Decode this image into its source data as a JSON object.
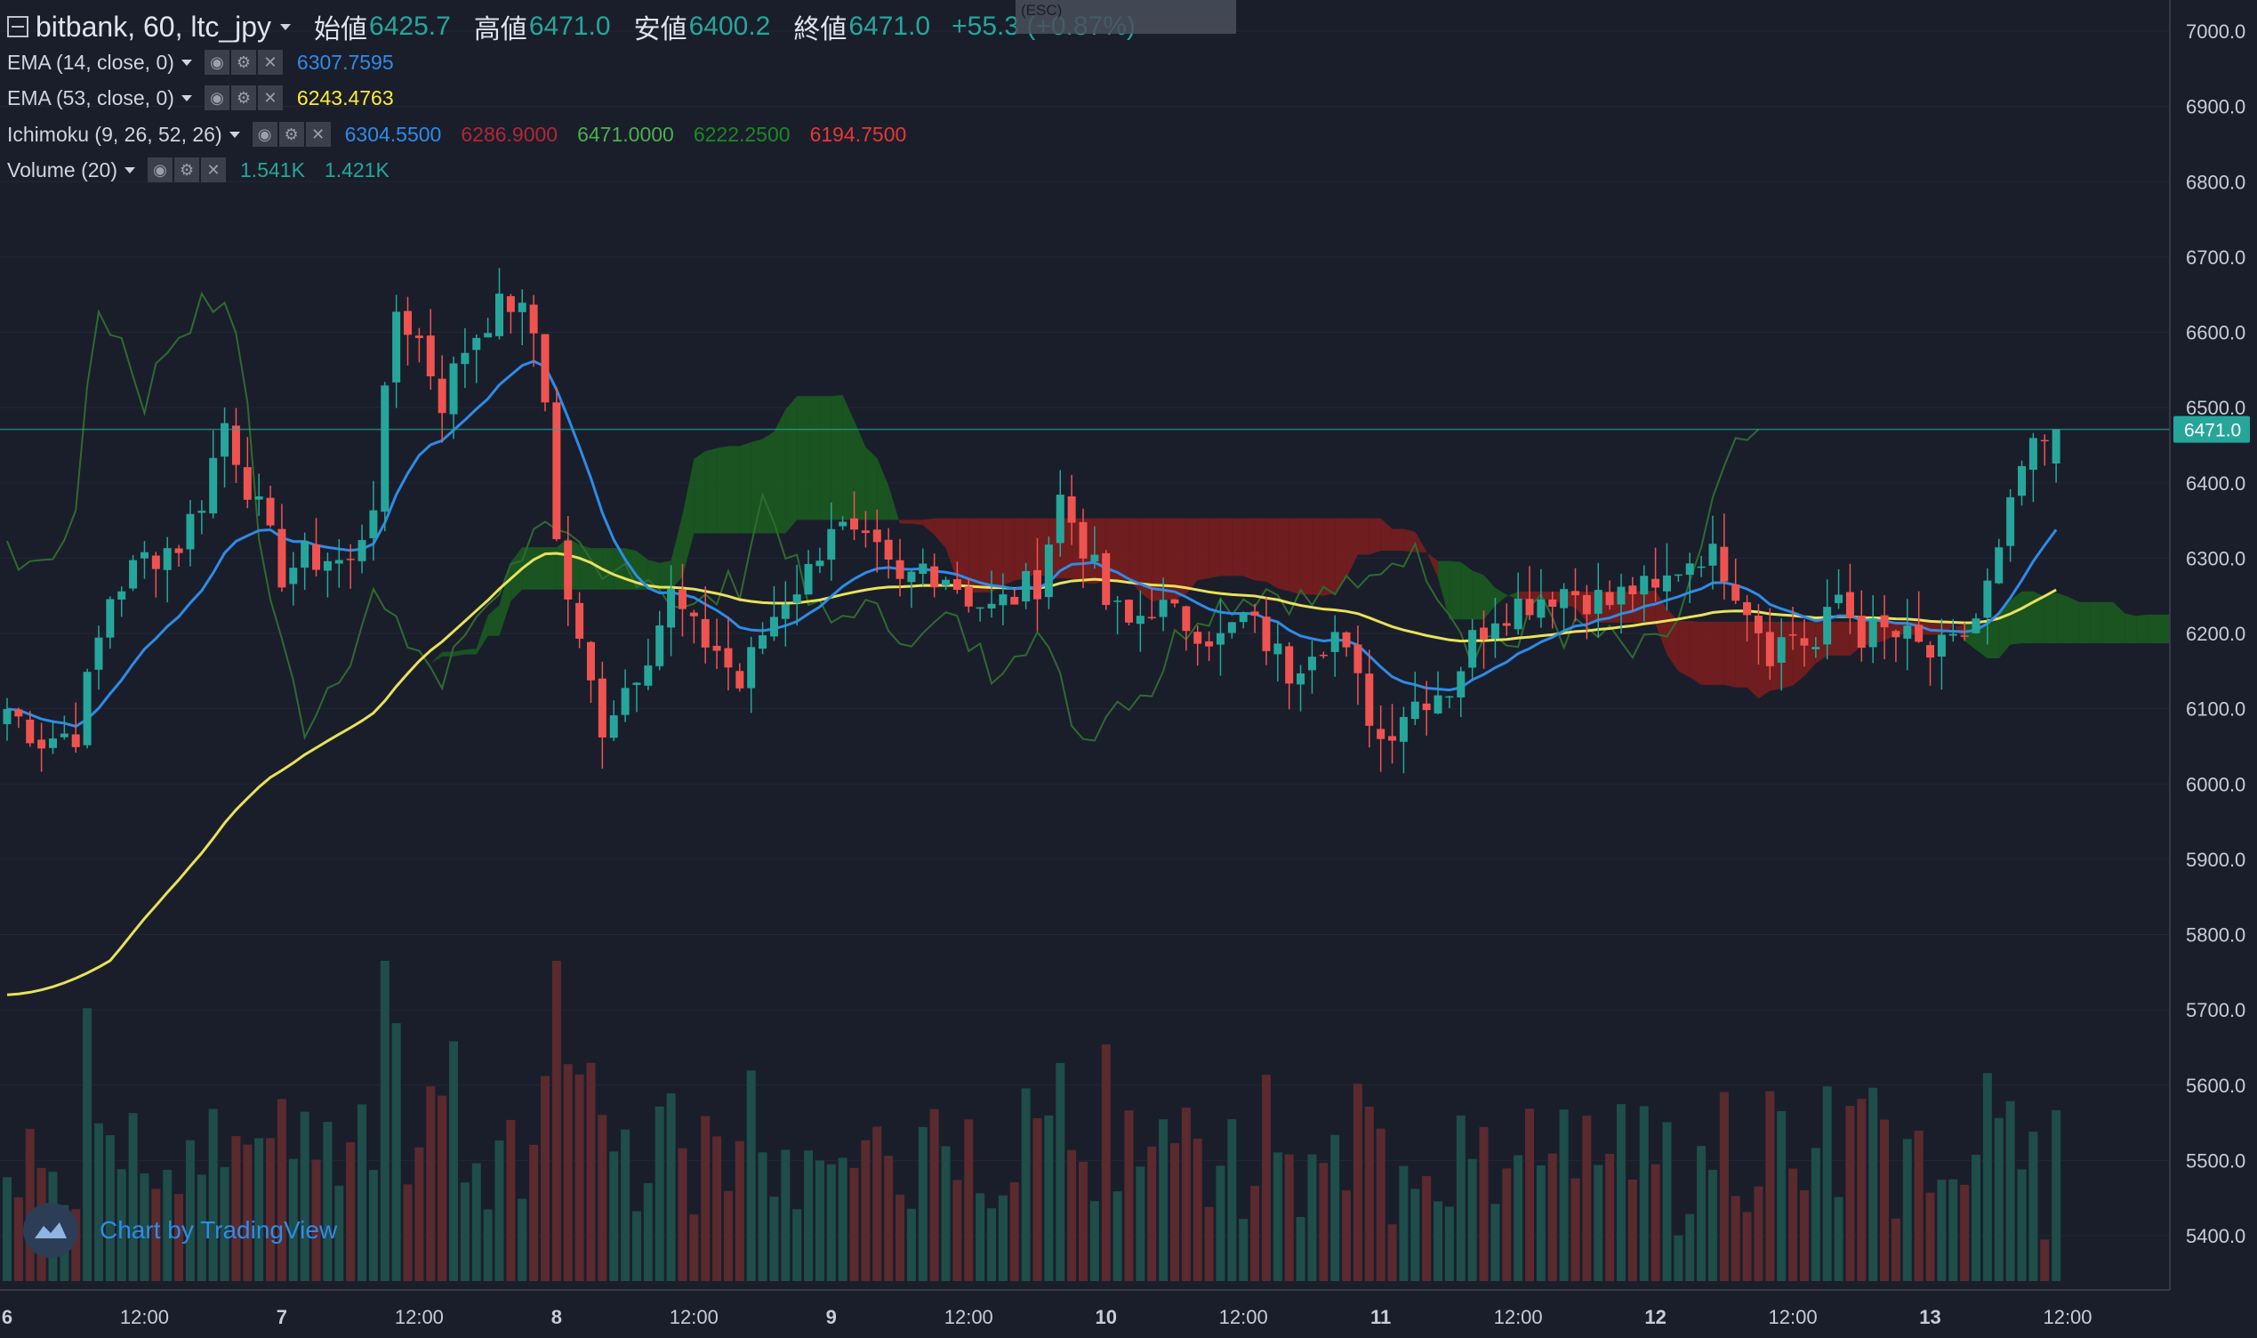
{
  "header": {
    "symbol": "bitbank, 60, ltc_jpy",
    "open_label": "始値",
    "open_value": "6425.7",
    "high_label": "高値",
    "high_value": "6471.0",
    "low_label": "安値",
    "low_value": "6400.2",
    "close_label": "終値",
    "close_value": "6471.0",
    "change": "+55.3 (+0.87%)"
  },
  "tooltip": {
    "text": "(ESC)"
  },
  "indicators": [
    {
      "label": "EMA (14, close, 0)",
      "values": [
        {
          "text": "6307.7595",
          "color": "#2f8be6"
        }
      ]
    },
    {
      "label": "EMA (53, close, 0)",
      "values": [
        {
          "text": "6243.4763",
          "color": "#ffeb3b"
        }
      ]
    },
    {
      "label": "Ichimoku (9, 26, 52, 26)",
      "values": [
        {
          "text": "6304.5500",
          "color": "#2f8be6"
        },
        {
          "text": "6286.9000",
          "color": "#b22833"
        },
        {
          "text": "6471.0000",
          "color": "#4caf50"
        },
        {
          "text": "6222.2500",
          "color": "#1b8a24"
        },
        {
          "text": "6194.7500",
          "color": "#e53935"
        }
      ]
    },
    {
      "label": "Volume (20)",
      "values": [
        {
          "text": "1.541K",
          "color": "#26a69a"
        },
        {
          "text": "1.421K",
          "color": "#26a69a"
        }
      ]
    }
  ],
  "watermark": {
    "text": "Chart by TradingView"
  },
  "colors": {
    "up": "#26a69a",
    "down": "#ef5350",
    "ema14": "#2f8be6",
    "ema53": "#e8e25a",
    "kumo_bull": "#1b5e20",
    "kumo_bear": "#7f1d1d",
    "background": "#1a1e2b"
  },
  "chart_data": {
    "type": "candlestick",
    "symbol": "ltc_jpy",
    "exchange": "bitbank",
    "interval": "60",
    "ylim": [
      5330,
      7050
    ],
    "y_ticks": [
      "7000.0",
      "6900.0",
      "6800.0",
      "6700.0",
      "6600.0",
      "6500.0",
      "6400.0",
      "6300.0",
      "6200.0",
      "6100.0",
      "6000.0",
      "5900.0",
      "5800.0",
      "5700.0",
      "5600.0",
      "5500.0",
      "5400.0"
    ],
    "x_ticks": [
      {
        "label": "6",
        "hour": 0
      },
      {
        "label": "12:00",
        "hour": 12
      },
      {
        "label": "7",
        "hour": 24
      },
      {
        "label": "12:00",
        "hour": 36
      },
      {
        "label": "8",
        "hour": 48
      },
      {
        "label": "12:00",
        "hour": 60
      },
      {
        "label": "9",
        "hour": 72
      },
      {
        "label": "12:00",
        "hour": 84
      },
      {
        "label": "10",
        "hour": 96
      },
      {
        "label": "12:00",
        "hour": 108
      },
      {
        "label": "11",
        "hour": 120
      },
      {
        "label": "12:00",
        "hour": 132
      },
      {
        "label": "12",
        "hour": 144
      },
      {
        "label": "12:00",
        "hour": 156
      },
      {
        "label": "13",
        "hour": 168
      },
      {
        "label": "12:00",
        "hour": 180
      }
    ],
    "last_price": "6471.0",
    "close_anchors": [
      [
        0,
        6100
      ],
      [
        3,
        6060
      ],
      [
        6,
        6070
      ],
      [
        9,
        6250
      ],
      [
        12,
        6300
      ],
      [
        15,
        6320
      ],
      [
        17,
        6380
      ],
      [
        19,
        6480
      ],
      [
        21,
        6400
      ],
      [
        23,
        6320
      ],
      [
        24,
        6280
      ],
      [
        26,
        6300
      ],
      [
        28,
        6300
      ],
      [
        30,
        6290
      ],
      [
        32,
        6380
      ],
      [
        34,
        6630
      ],
      [
        36,
        6590
      ],
      [
        38,
        6510
      ],
      [
        40,
        6580
      ],
      [
        42,
        6620
      ],
      [
        44,
        6640
      ],
      [
        46,
        6600
      ],
      [
        47,
        6520
      ],
      [
        48,
        6320
      ],
      [
        50,
        6180
      ],
      [
        52,
        6080
      ],
      [
        54,
        6130
      ],
      [
        56,
        6180
      ],
      [
        58,
        6250
      ],
      [
        60,
        6200
      ],
      [
        62,
        6180
      ],
      [
        64,
        6130
      ],
      [
        66,
        6200
      ],
      [
        68,
        6250
      ],
      [
        70,
        6280
      ],
      [
        72,
        6350
      ],
      [
        74,
        6320
      ],
      [
        76,
        6300
      ],
      [
        78,
        6260
      ],
      [
        80,
        6290
      ],
      [
        82,
        6280
      ],
      [
        84,
        6250
      ],
      [
        86,
        6230
      ],
      [
        88,
        6250
      ],
      [
        90,
        6270
      ],
      [
        92,
        6380
      ],
      [
        94,
        6320
      ],
      [
        96,
        6240
      ],
      [
        98,
        6210
      ],
      [
        100,
        6240
      ],
      [
        102,
        6220
      ],
      [
        104,
        6210
      ],
      [
        106,
        6190
      ],
      [
        108,
        6220
      ],
      [
        110,
        6190
      ],
      [
        112,
        6150
      ],
      [
        114,
        6190
      ],
      [
        116,
        6200
      ],
      [
        118,
        6130
      ],
      [
        120,
        6060
      ],
      [
        122,
        6100
      ],
      [
        124,
        6120
      ],
      [
        126,
        6130
      ],
      [
        128,
        6190
      ],
      [
        130,
        6230
      ],
      [
        132,
        6240
      ],
      [
        134,
        6250
      ],
      [
        136,
        6260
      ],
      [
        138,
        6250
      ],
      [
        140,
        6240
      ],
      [
        142,
        6260
      ],
      [
        144,
        6250
      ],
      [
        146,
        6290
      ],
      [
        148,
        6310
      ],
      [
        150,
        6290
      ],
      [
        152,
        6240
      ],
      [
        154,
        6180
      ],
      [
        156,
        6200
      ],
      [
        158,
        6180
      ],
      [
        160,
        6250
      ],
      [
        162,
        6200
      ],
      [
        164,
        6200
      ],
      [
        166,
        6190
      ],
      [
        168,
        6170
      ],
      [
        170,
        6180
      ],
      [
        172,
        6220
      ],
      [
        174,
        6300
      ],
      [
        176,
        6420
      ],
      [
        178,
        6450
      ],
      [
        179,
        6471
      ]
    ],
    "volume_range": [
      0,
      1600
    ]
  }
}
